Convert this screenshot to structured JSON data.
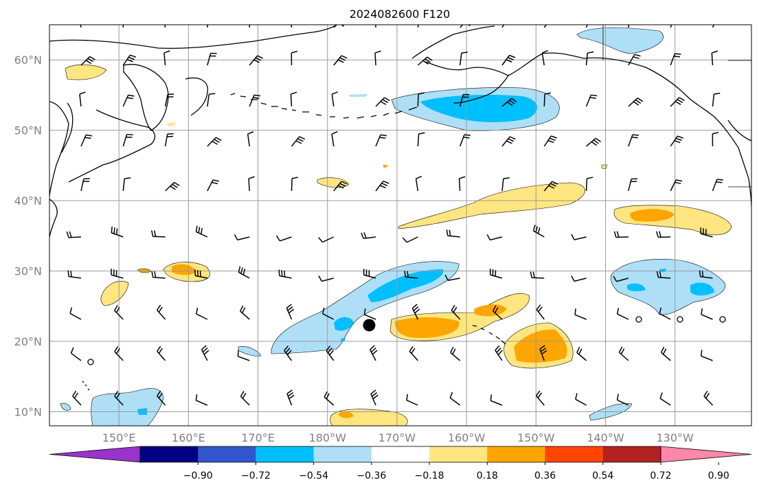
{
  "title": "2024082600 F120",
  "map": {
    "lon_range": [
      140,
      241
    ],
    "lat_range": [
      8,
      65
    ],
    "grid": true,
    "lon_ticks": [
      {
        "lon": 150,
        "label": "150°E"
      },
      {
        "lon": 160,
        "label": "160°E"
      },
      {
        "lon": 170,
        "label": "170°E"
      },
      {
        "lon": 180,
        "label": "180°W"
      },
      {
        "lon": 190,
        "label": "170°W"
      },
      {
        "lon": 200,
        "label": "160°W"
      },
      {
        "lon": 210,
        "label": "150°W"
      },
      {
        "lon": 220,
        "label": "140°W"
      },
      {
        "lon": 230,
        "label": "130°W"
      }
    ],
    "lat_ticks": [
      {
        "lat": 60,
        "label": "60°N"
      },
      {
        "lat": 50,
        "label": "50°N"
      },
      {
        "lat": 40,
        "label": "40°N"
      },
      {
        "lat": 30,
        "label": "30°N"
      },
      {
        "lat": 20,
        "label": "20°N"
      },
      {
        "lat": 10,
        "label": "10°N"
      }
    ],
    "marker": {
      "lon": 186,
      "lat": 22.3,
      "color": "#000000"
    }
  },
  "colorbar": {
    "levels": [
      "−0.90",
      "−0.72",
      "−0.54",
      "−0.36",
      "−0.18",
      "0.18",
      "0.36",
      "0.54",
      "0.72",
      "0.90"
    ],
    "colors": [
      "#9933cc",
      "#000080",
      "#3355cc",
      "#00bfff",
      "#aedff7",
      "#ffffff",
      "#ffe680",
      "#ffa500",
      "#ff4500",
      "#b22222",
      "#ff88aa"
    ],
    "extend": "both"
  },
  "chart_data": {
    "type": "heatmap",
    "title": "2024082600 F120",
    "xlabel": "",
    "ylabel": "",
    "contour_levels": [
      -0.9,
      -0.72,
      -0.54,
      -0.36,
      -0.18,
      0.18,
      0.36,
      0.54,
      0.72,
      0.9
    ],
    "anomaly_regions": [
      {
        "sign": "negative",
        "peak_level": -0.54,
        "lon_range": [
          190,
          214
        ],
        "lat_range": [
          49,
          55
        ]
      },
      {
        "sign": "negative",
        "peak_level": -0.54,
        "lon_range": [
          172,
          198
        ],
        "lat_range": [
          16,
          31
        ]
      },
      {
        "sign": "negative",
        "peak_level": -0.54,
        "lon_range": [
          221,
          238
        ],
        "lat_range": [
          23,
          31
        ]
      },
      {
        "sign": "negative",
        "peak_level": -0.54,
        "lon_range": [
          146,
          156
        ],
        "lat_range": [
          8,
          13
        ]
      },
      {
        "sign": "negative",
        "peak_level": -0.36,
        "lon_range": [
          216,
          230
        ],
        "lat_range": [
          60,
          65
        ]
      },
      {
        "sign": "positive",
        "peak_level": 0.36,
        "lon_range": [
          191,
          218
        ],
        "lat_range": [
          35,
          43
        ]
      },
      {
        "sign": "positive",
        "peak_level": 0.54,
        "lon_range": [
          222,
          239
        ],
        "lat_range": [
          35,
          40
        ]
      },
      {
        "sign": "positive",
        "peak_level": 0.54,
        "lon_range": [
          189,
          210
        ],
        "lat_range": [
          19,
          25
        ]
      },
      {
        "sign": "positive",
        "peak_level": 0.54,
        "lon_range": [
          205,
          216
        ],
        "lat_range": [
          15,
          22
        ]
      },
      {
        "sign": "positive",
        "peak_level": 0.54,
        "lon_range": [
          156,
          164
        ],
        "lat_range": [
          28,
          32
        ]
      },
      {
        "sign": "positive",
        "peak_level": 0.54,
        "lon_range": [
          181,
          192
        ],
        "lat_range": [
          8,
          10
        ]
      },
      {
        "sign": "positive",
        "peak_level": 0.36,
        "lon_range": [
          147,
          151
        ],
        "lat_range": [
          60,
          62
        ]
      }
    ]
  }
}
